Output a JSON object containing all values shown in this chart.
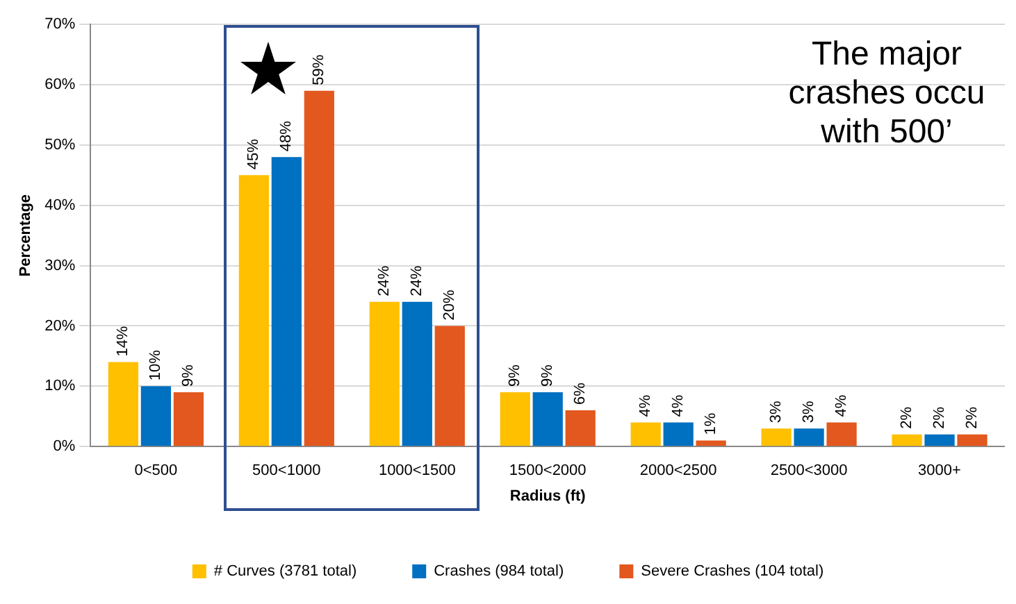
{
  "chart_data": {
    "type": "bar",
    "xlabel": "Radius (ft)",
    "ylabel": "Percentage",
    "categories": [
      "0<500",
      "500<1000",
      "1000<1500",
      "1500<2000",
      "2000<2500",
      "2500<3000",
      "3000+"
    ],
    "series": [
      {
        "name": "# Curves (3781 total)",
        "color": "#ffc000",
        "values": [
          14,
          45,
          24,
          9,
          4,
          3,
          2
        ],
        "value_labels": [
          "14%",
          "45%",
          "24%",
          "9%",
          "4%",
          "3%",
          "2%"
        ]
      },
      {
        "name": "Crashes (984 total)",
        "color": "#0070c0",
        "values": [
          10,
          48,
          24,
          9,
          4,
          3,
          2
        ],
        "value_labels": [
          "10%",
          "48%",
          "24%",
          "9%",
          "4%",
          "3%",
          "2%"
        ]
      },
      {
        "name": "Severe Crashes (104 total)",
        "color": "#e2581e",
        "values": [
          9,
          59,
          20,
          6,
          1,
          4,
          2
        ],
        "value_labels": [
          "9%",
          "59%",
          "20%",
          "6%",
          "1%",
          "4%",
          "2%"
        ]
      }
    ],
    "ylim": [
      0,
      70
    ],
    "yticks": [
      {
        "value": 0,
        "label": "0%"
      },
      {
        "value": 10,
        "label": "10%"
      },
      {
        "value": 20,
        "label": "20%"
      },
      {
        "value": 30,
        "label": "30%"
      },
      {
        "value": 40,
        "label": "40%"
      },
      {
        "value": 50,
        "label": "50%"
      },
      {
        "value": 60,
        "label": "60%"
      },
      {
        "value": 70,
        "label": "70%"
      }
    ],
    "grid": "y",
    "legend": "bottom",
    "annotations": [
      "The major\ncrashes occu\nwith 500’"
    ]
  }
}
